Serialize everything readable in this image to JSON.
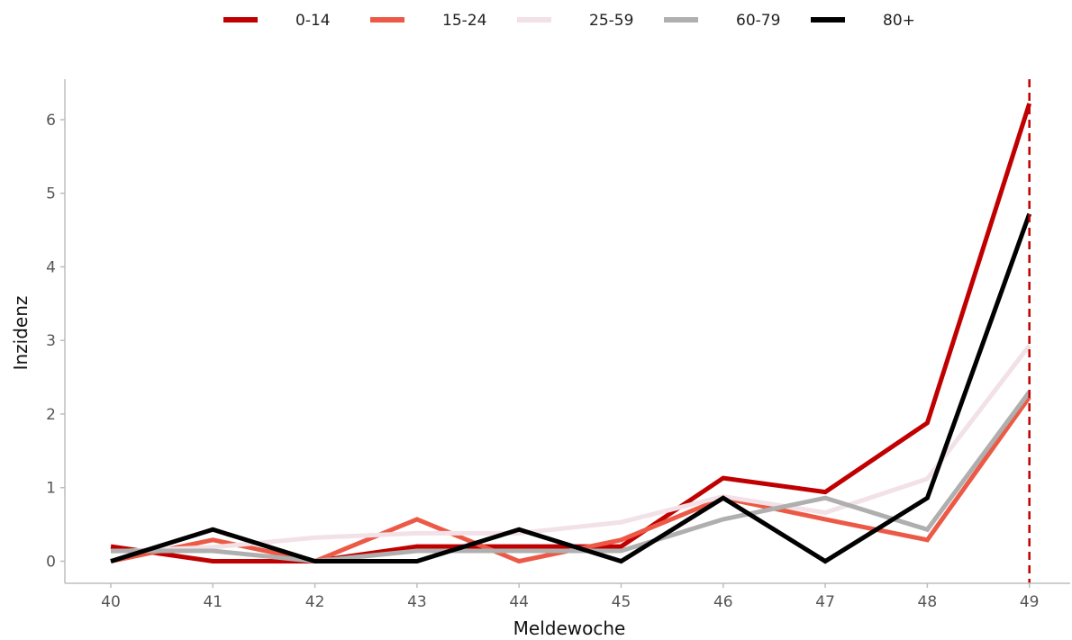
{
  "chart_data": {
    "type": "line",
    "xlabel": "Meldewoche",
    "ylabel": "Inzidenz",
    "x": [
      40,
      41,
      42,
      43,
      44,
      45,
      46,
      47,
      48,
      49
    ],
    "xlim": [
      39.55,
      49.4
    ],
    "ylim": [
      -0.3,
      6.55
    ],
    "xticks": [
      "40",
      "41",
      "42",
      "43",
      "44",
      "45",
      "46",
      "47",
      "48",
      "49"
    ],
    "yticks": [
      "0",
      "1",
      "2",
      "3",
      "4",
      "5",
      "6"
    ],
    "reference_line": {
      "x": 49,
      "color": "#c00000",
      "style": "dashed"
    },
    "legend_position": "top",
    "grid": false,
    "series": [
      {
        "name": "0-14",
        "color": "#c00000",
        "width": 5,
        "values": [
          0.2,
          0.0,
          0.0,
          0.2,
          0.2,
          0.2,
          1.13,
          0.94,
          1.88,
          6.22
        ]
      },
      {
        "name": "15-24",
        "color": "#ec5a47",
        "width": 5,
        "values": [
          0.0,
          0.29,
          0.0,
          0.57,
          0.0,
          0.29,
          0.86,
          0.57,
          0.29,
          2.23
        ]
      },
      {
        "name": "25-59",
        "color": "#f2e1e6",
        "width": 5,
        "values": [
          0.13,
          0.19,
          0.32,
          0.38,
          0.38,
          0.53,
          0.88,
          0.66,
          1.12,
          2.93
        ]
      },
      {
        "name": "60-79",
        "color": "#afafaf",
        "width": 5,
        "values": [
          0.14,
          0.14,
          0.0,
          0.14,
          0.14,
          0.14,
          0.57,
          0.86,
          0.43,
          2.3
        ]
      },
      {
        "name": "80+",
        "color": "#000000",
        "width": 5,
        "values": [
          0.0,
          0.43,
          0.0,
          0.0,
          0.43,
          0.0,
          0.86,
          0.0,
          0.86,
          4.72
        ]
      }
    ]
  }
}
